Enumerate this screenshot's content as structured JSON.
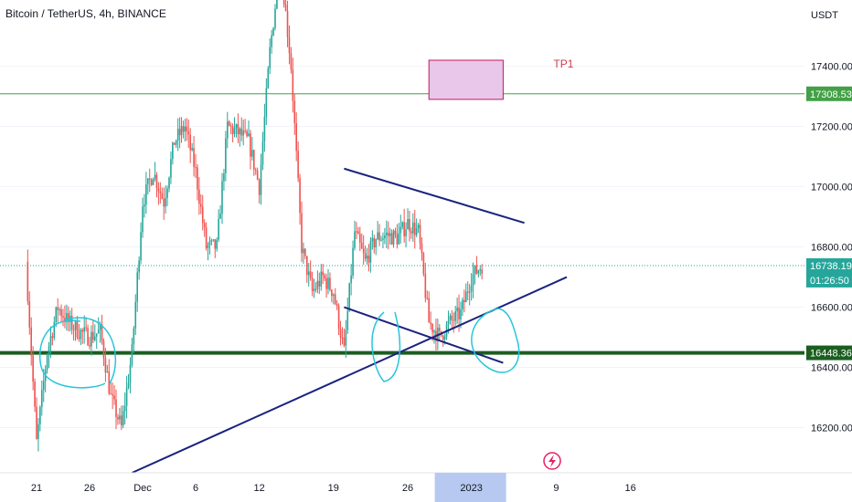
{
  "header": {
    "title": "Bitcoin / TetherUS, 4h, BINANCE"
  },
  "colors": {
    "up": "#26a69a",
    "down": "#ef5350",
    "support": "#1b5e20",
    "resistance": "#43a047",
    "trendline": "#1a237e",
    "hand": "#26c6da",
    "tp_fill": "#e9c7ea",
    "tp_border": "#c2185b",
    "current": "#26a69a",
    "highlight": "#b7c9f0"
  },
  "price_axis": {
    "currency": "USDT",
    "ticks": [
      "17400.00",
      "17200.00",
      "17000.00",
      "16800.00",
      "16600.00",
      "16400.00",
      "16200.00"
    ]
  },
  "price_tags": {
    "resistance": "17308.53",
    "current": "16738.19",
    "countdown": "01:26:50",
    "support": "16448.36"
  },
  "time_axis": {
    "labels": [
      "21",
      "26",
      "Dec",
      "6",
      "12",
      "19",
      "26",
      "2023",
      "9",
      "16"
    ]
  },
  "annotations": {
    "target_label": "TP1"
  },
  "chart_data": {
    "type": "candlestick",
    "title": "Bitcoin / TetherUS, 4h, BINANCE",
    "ylabel": "USDT",
    "ylim": [
      16050,
      17620
    ],
    "x_ticks": [
      "21",
      "26",
      "Dec",
      "6",
      "12",
      "19",
      "26",
      "2023",
      "9",
      "16"
    ],
    "y_ticks": [
      17400,
      17200,
      17000,
      16800,
      16600,
      16400,
      16200
    ],
    "horizontal_levels": [
      {
        "price": 17308.53,
        "style": "thin green"
      },
      {
        "price": 16448.36,
        "style": "thick dark green"
      }
    ],
    "current_price": 16738.19,
    "target_box": {
      "label": "TP1",
      "from": "Dec 28",
      "to": "Jan 4",
      "low": 17290,
      "high": 17420
    },
    "trendlines": [
      {
        "from": [
          "Dec 20",
          17060
        ],
        "to": [
          "Jan 6",
          16880
        ]
      },
      {
        "from": [
          "Dec 20",
          16600
        ],
        "to": [
          "Jan 4",
          16415
        ]
      },
      {
        "from": [
          "Nov 30",
          16050
        ],
        "to": [
          "Jan 10",
          16700
        ]
      }
    ],
    "waypoints": [
      [
        "Nov 20",
        16750
      ],
      [
        "Nov 21",
        16150
      ],
      [
        "Nov 22",
        16450
      ],
      [
        "Nov 23",
        16600
      ],
      [
        "Nov 24",
        16550
      ],
      [
        "Nov 25",
        16520
      ],
      [
        "Nov 26",
        16500
      ],
      [
        "Nov 27",
        16520
      ],
      [
        "Nov 28",
        16300
      ],
      [
        "Nov 29",
        16200
      ],
      [
        "Nov 30",
        16450
      ],
      [
        "Dec 1",
        16950
      ],
      [
        "Dec 2",
        17050
      ],
      [
        "Dec 3",
        16950
      ],
      [
        "Dec 4",
        17150
      ],
      [
        "Dec 5",
        17200
      ],
      [
        "Dec 6",
        17050
      ],
      [
        "Dec 7",
        16800
      ],
      [
        "Dec 8",
        16800
      ],
      [
        "Dec 9",
        17200
      ],
      [
        "Dec 10",
        17180
      ],
      [
        "Dec 11",
        17150
      ],
      [
        "Dec 12",
        17000
      ],
      [
        "Dec 13",
        17450
      ],
      [
        "Dec 14",
        17750
      ],
      [
        "Dec 15",
        17400
      ],
      [
        "Dec 16",
        16800
      ],
      [
        "Dec 17",
        16650
      ],
      [
        "Dec 18",
        16700
      ],
      [
        "Dec 19",
        16650
      ],
      [
        "Dec 20",
        16450
      ],
      [
        "Dec 21",
        16850
      ],
      [
        "Dec 22",
        16750
      ],
      [
        "Dec 23",
        16830
      ],
      [
        "Dec 24",
        16840
      ],
      [
        "Dec 25",
        16830
      ],
      [
        "Dec 26",
        16880
      ],
      [
        "Dec 27",
        16850
      ],
      [
        "Dec 28",
        16550
      ],
      [
        "Dec 29",
        16500
      ],
      [
        "Dec 30",
        16550
      ],
      [
        "Dec 31",
        16580
      ],
      [
        "Jan 1",
        16700
      ],
      [
        "Jan 2",
        16740
      ]
    ]
  }
}
